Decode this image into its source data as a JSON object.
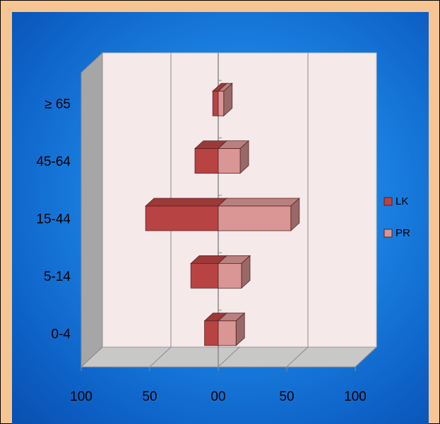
{
  "chart_data": {
    "type": "bar",
    "orientation": "horizontal",
    "style": "3d-stacked-population-pyramid",
    "categories": [
      "0-4",
      "5-14",
      "15-44",
      "45-64",
      "≥ 65"
    ],
    "series": [
      {
        "name": "LK",
        "values": [
          -10,
          -20,
          -53,
          -17,
          -4
        ],
        "color": "#b84343"
      },
      {
        "name": "PR",
        "values": [
          13,
          17,
          53,
          16,
          4
        ],
        "color": "#d99694"
      }
    ],
    "x_tick_labels": [
      "100",
      "50",
      "00",
      "50",
      "100"
    ],
    "xlim": [
      -100,
      100
    ],
    "legend_position": "right",
    "grid": true,
    "colors": {
      "background": "#f7c592",
      "panel": "#1a7fe0",
      "plot_wall": "#f5e9ea",
      "floor": "#c8c8c8",
      "side_wall": "#a6a6a6"
    }
  }
}
